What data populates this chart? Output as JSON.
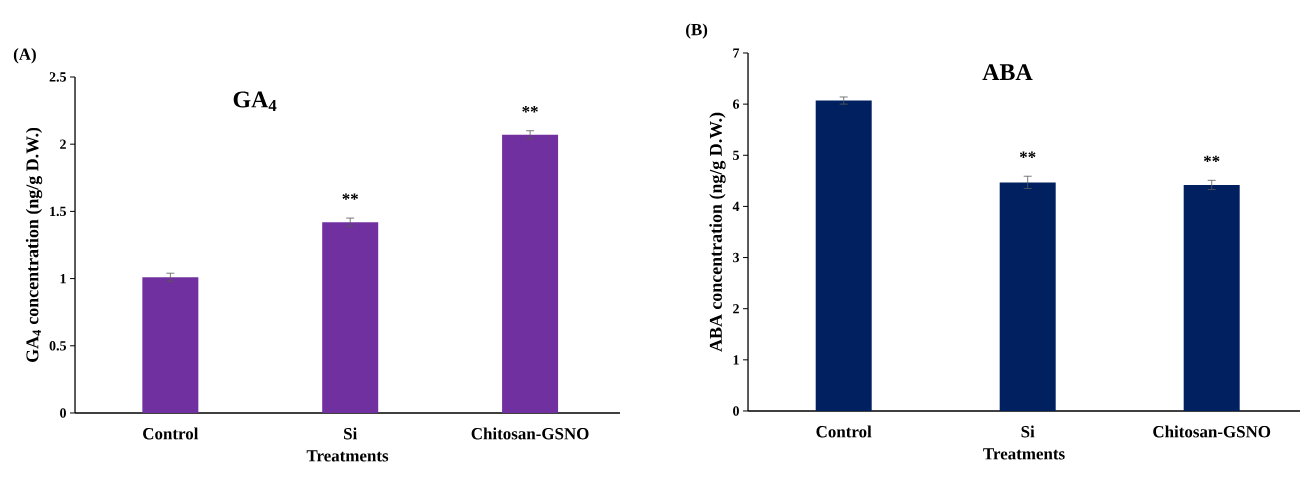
{
  "chart_data": [
    {
      "type": "bar",
      "title": "GA$_{4}$",
      "xlabel": "Treatments",
      "ylabel": "GA$_{4}$ concentration (ng/g D.W.)",
      "categories": [
        "Control",
        "Si",
        "Chitosan-GSNO"
      ],
      "values": [
        1.01,
        1.42,
        2.07
      ],
      "errors": [
        0.03,
        0.03,
        0.03
      ],
      "color": "#7030a0",
      "ylim": [
        0,
        2.5
      ],
      "yticks": [
        0,
        0.5,
        1,
        1.5,
        2,
        2.5
      ],
      "annotations": [
        "(A)",
        "**",
        "**"
      ]
    },
    {
      "type": "bar",
      "title": "ABA",
      "xlabel": "Treatments",
      "ylabel": "ABA concentration (ng/g D.W.)",
      "categories": [
        "Control",
        "Si",
        "Chitosan-GSNO"
      ],
      "values": [
        6.07,
        4.47,
        4.42
      ],
      "errors": [
        0.07,
        0.12,
        0.09
      ],
      "color": "#002060",
      "ylim": [
        0,
        7
      ],
      "yticks": [
        0,
        1,
        2,
        3,
        4,
        5,
        6,
        7
      ],
      "annotations": [
        "(B)",
        "**",
        "**"
      ]
    }
  ]
}
